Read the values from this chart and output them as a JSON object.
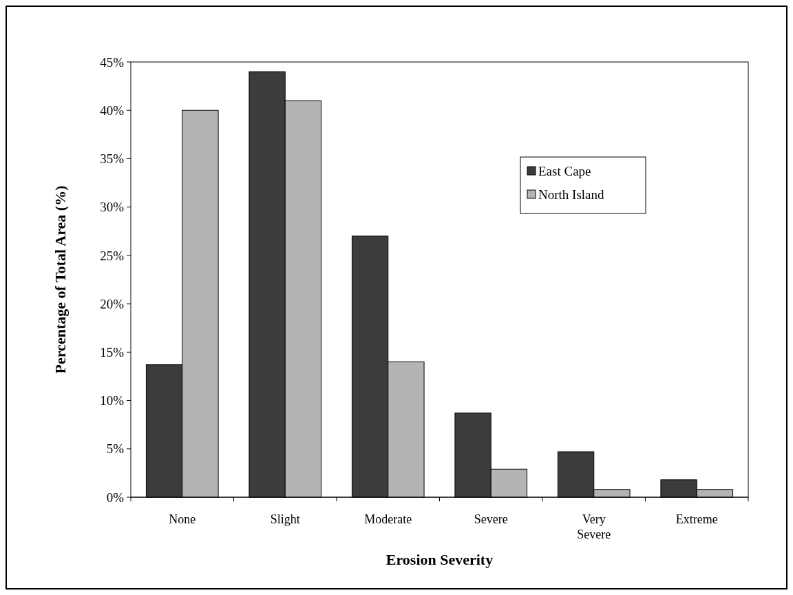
{
  "chart_data": {
    "type": "bar",
    "xlabel": "Erosion Severity",
    "ylabel": "Percentage of Total Area (%)",
    "categories": [
      "None",
      "Slight",
      "Moderate",
      "Severe",
      "Very Severe",
      "Extreme"
    ],
    "series": [
      {
        "name": "East Cape",
        "color": "#3c3c3c",
        "values": [
          13.7,
          44,
          27,
          8.7,
          4.7,
          1.8
        ]
      },
      {
        "name": "North Island",
        "color": "#b4b4b4",
        "values": [
          40,
          41,
          14,
          2.9,
          0.8,
          0.8
        ]
      }
    ],
    "ylim": [
      0,
      45
    ],
    "yticks": [
      {
        "value": 0,
        "label": "0%"
      },
      {
        "value": 5,
        "label": "5%"
      },
      {
        "value": 10,
        "label": "10%"
      },
      {
        "value": 15,
        "label": "15%"
      },
      {
        "value": 20,
        "label": "20%"
      },
      {
        "value": 25,
        "label": "25%"
      },
      {
        "value": 30,
        "label": "30%"
      },
      {
        "value": 35,
        "label": "35%"
      },
      {
        "value": 40,
        "label": "40%"
      },
      {
        "value": 45,
        "label": "45%"
      }
    ],
    "grid": false,
    "legend": "top right"
  }
}
